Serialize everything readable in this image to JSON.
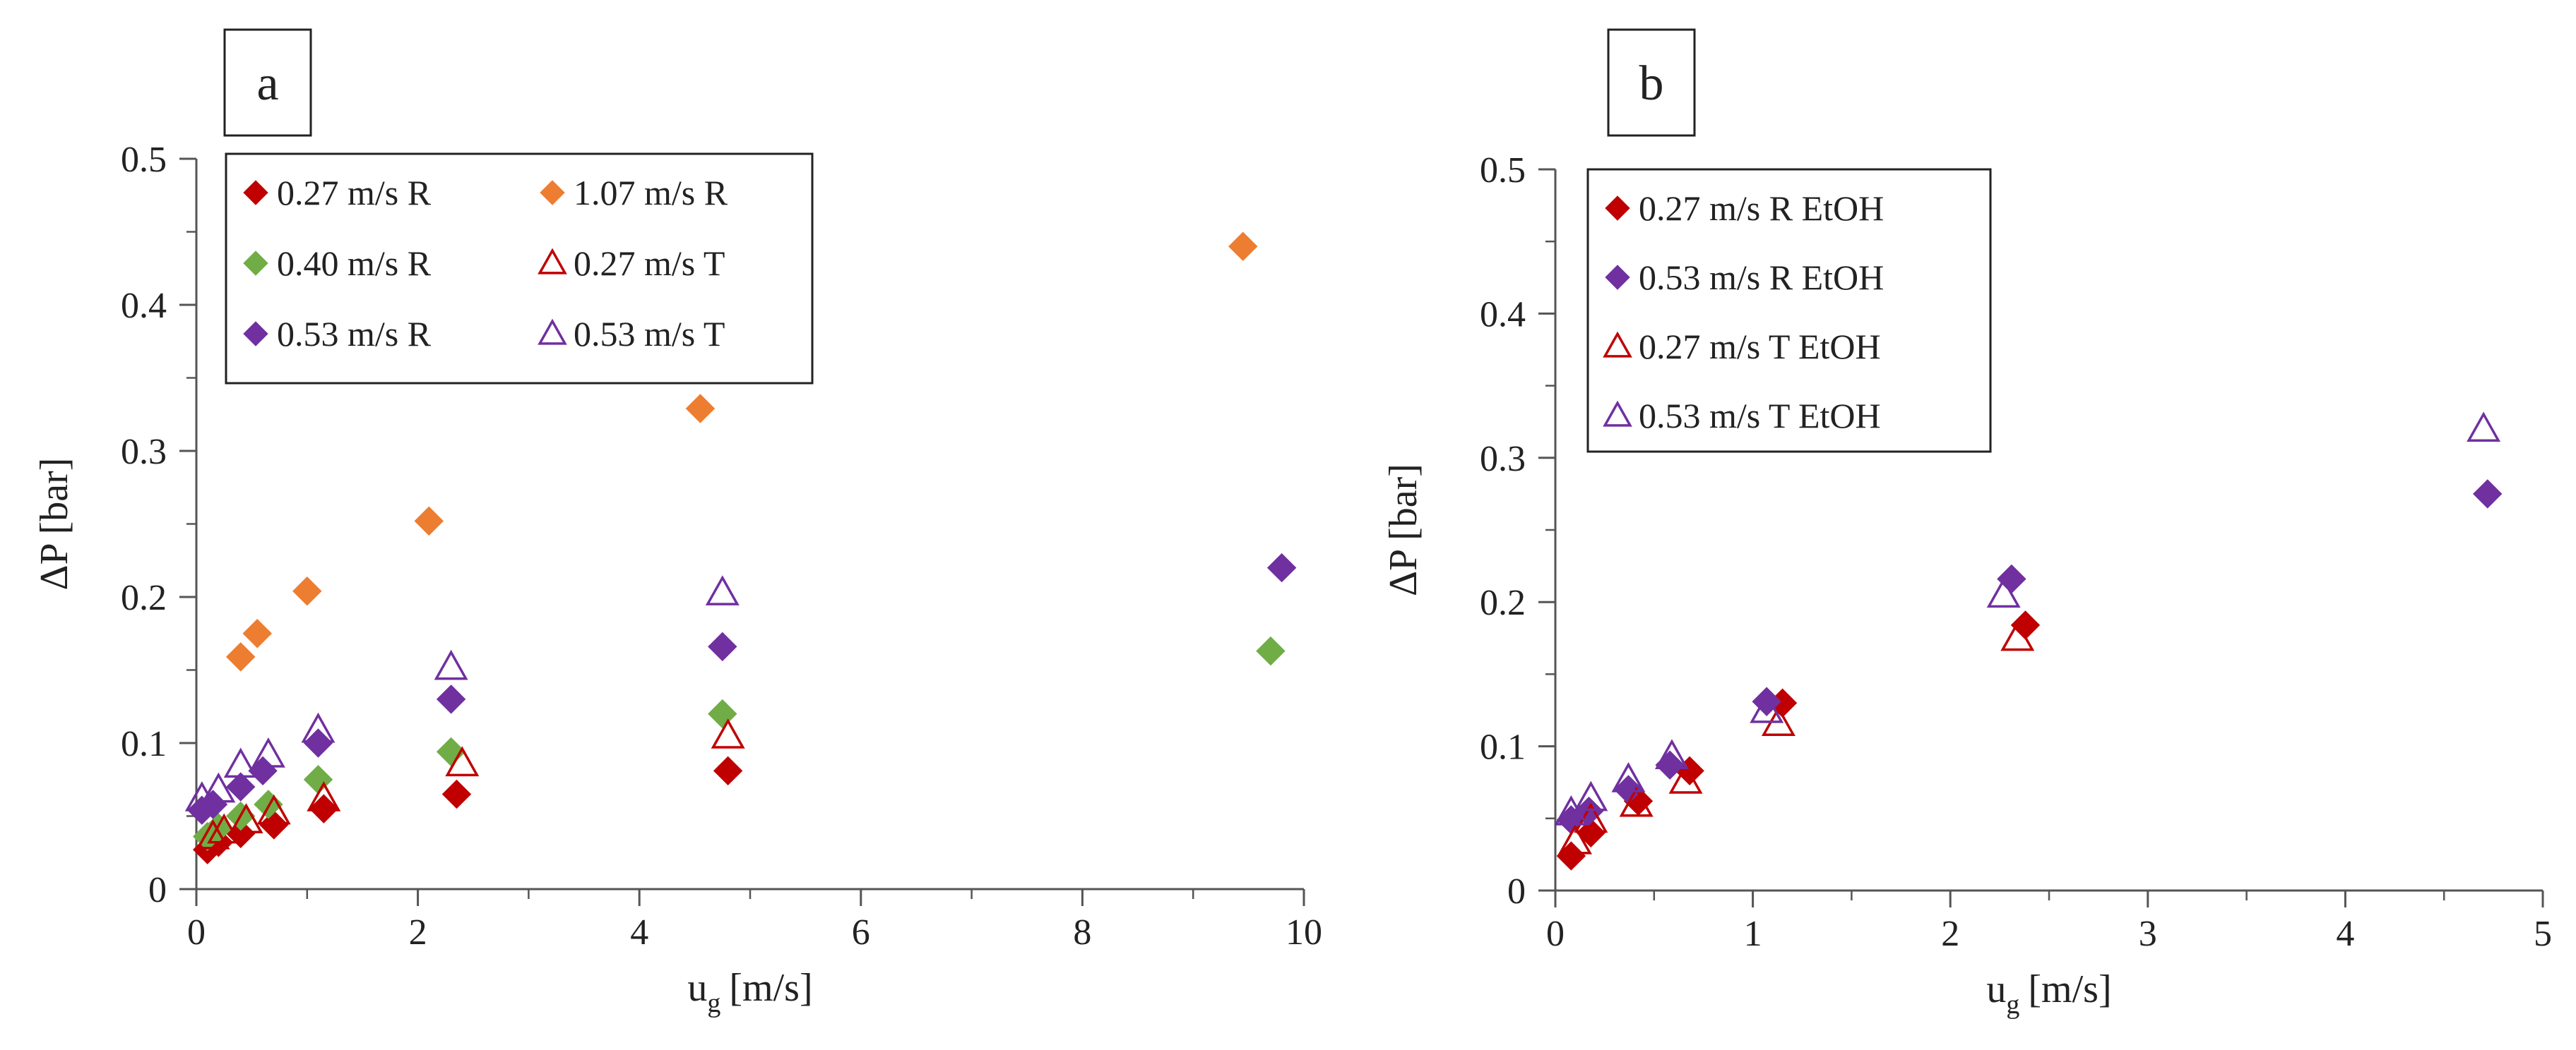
{
  "chart_data": [
    {
      "type": "scatter",
      "panel_label": "a",
      "xlabel": "u",
      "xlabel_sub": "g",
      "xlabel_unit": "[m/s]",
      "ylabel": "ΔP [bar]",
      "xlim": [
        0,
        10
      ],
      "ylim": [
        0,
        0.5
      ],
      "xticks": [
        0,
        2,
        4,
        6,
        8,
        10
      ],
      "xtick_labels": [
        "0",
        "2",
        "4",
        "6",
        "8",
        "10"
      ],
      "yticks": [
        0,
        0.1,
        0.2,
        0.3,
        0.4,
        0.5
      ],
      "ytick_labels": [
        "0",
        "0.1",
        "0.2",
        "0.3",
        "0.4",
        "0.5"
      ],
      "x_minor_step": 1,
      "y_minor_step": 0.05,
      "legend_position": "top-left",
      "legend_columns": 2,
      "legend_order": [
        0,
        3,
        1,
        4,
        2,
        5
      ],
      "series": [
        {
          "name": "0.27 m/s R",
          "marker": "diamond-filled",
          "color": "#C00000",
          "x": [
            0.1,
            0.2,
            0.4,
            0.7,
            1.15,
            2.35,
            4.8
          ],
          "y": [
            0.027,
            0.032,
            0.038,
            0.044,
            0.055,
            0.065,
            0.081
          ]
        },
        {
          "name": "0.40 m/s R",
          "marker": "diamond-filled",
          "color": "#70AD47",
          "x": [
            0.1,
            0.2,
            0.4,
            0.65,
            1.1,
            2.3,
            4.75,
            9.7
          ],
          "y": [
            0.036,
            0.042,
            0.05,
            0.058,
            0.075,
            0.094,
            0.12,
            0.163
          ]
        },
        {
          "name": "0.53 m/s R",
          "marker": "diamond-filled",
          "color": "#7030A0",
          "x": [
            0.05,
            0.15,
            0.4,
            0.6,
            1.1,
            2.3,
            4.75,
            9.8
          ],
          "y": [
            0.054,
            0.058,
            0.07,
            0.081,
            0.1,
            0.13,
            0.166,
            0.22
          ]
        },
        {
          "name": "1.07 m/s R",
          "marker": "diamond-filled",
          "color": "#ED7D31",
          "x": [
            0.4,
            0.55,
            1.0,
            2.1,
            4.55,
            9.45
          ],
          "y": [
            0.159,
            0.175,
            0.204,
            0.252,
            0.329,
            0.44
          ]
        },
        {
          "name": "0.27 m/s T",
          "marker": "triangle-open",
          "color": "#C00000",
          "x": [
            0.15,
            0.25,
            0.45,
            0.7,
            1.15,
            2.4,
            4.8
          ],
          "y": [
            0.036,
            0.04,
            0.047,
            0.053,
            0.062,
            0.086,
            0.105
          ]
        },
        {
          "name": "0.53 m/s T",
          "marker": "triangle-open",
          "color": "#7030A0",
          "x": [
            0.05,
            0.2,
            0.4,
            0.65,
            1.1,
            2.3,
            4.75
          ],
          "y": [
            0.062,
            0.068,
            0.085,
            0.092,
            0.109,
            0.152,
            0.203
          ]
        }
      ]
    },
    {
      "type": "scatter",
      "panel_label": "b",
      "xlabel": "u",
      "xlabel_sub": "g",
      "xlabel_unit": "[m/s]",
      "ylabel": "ΔP [bar]",
      "xlim": [
        0,
        5
      ],
      "ylim": [
        0,
        0.5
      ],
      "xticks": [
        0,
        1,
        2,
        3,
        4,
        5
      ],
      "xtick_labels": [
        "0",
        "1",
        "2",
        "3",
        "4",
        "5"
      ],
      "yticks": [
        0,
        0.1,
        0.2,
        0.3,
        0.4,
        0.5
      ],
      "ytick_labels": [
        "0",
        "0.1",
        "0.2",
        "0.3",
        "0.4",
        "0.5"
      ],
      "x_minor_step": 0.5,
      "y_minor_step": 0.05,
      "legend_position": "top-left",
      "legend_columns": 1,
      "legend_order": [
        0,
        1,
        2,
        3
      ],
      "series": [
        {
          "name": "0.27 m/s R EtOH",
          "marker": "diamond-filled",
          "color": "#C00000",
          "x": [
            0.08,
            0.18,
            0.42,
            0.68,
            1.15,
            2.38
          ],
          "y": [
            0.024,
            0.04,
            0.062,
            0.083,
            0.13,
            0.184
          ]
        },
        {
          "name": "0.53 m/s R EtOH",
          "marker": "diamond-filled",
          "color": "#7030A0",
          "x": [
            0.08,
            0.17,
            0.37,
            0.58,
            1.07,
            2.31,
            4.72
          ],
          "y": [
            0.049,
            0.055,
            0.07,
            0.087,
            0.131,
            0.216,
            0.275
          ]
        },
        {
          "name": "0.27 m/s T EtOH",
          "marker": "triangle-open",
          "color": "#C00000",
          "x": [
            0.1,
            0.18,
            0.41,
            0.66,
            1.13,
            2.34
          ],
          "y": [
            0.034,
            0.049,
            0.06,
            0.076,
            0.116,
            0.175
          ]
        },
        {
          "name": "0.53 m/s T EtOH",
          "marker": "triangle-open",
          "color": "#7030A0",
          "x": [
            0.08,
            0.18,
            0.37,
            0.59,
            1.07,
            2.27,
            4.7
          ],
          "y": [
            0.054,
            0.064,
            0.077,
            0.093,
            0.125,
            0.205,
            0.32
          ]
        }
      ]
    }
  ]
}
